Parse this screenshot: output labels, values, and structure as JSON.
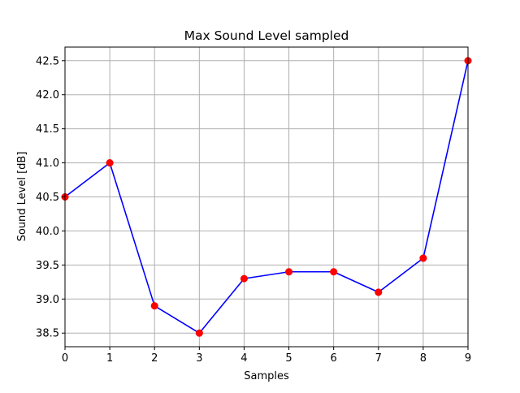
{
  "chart_data": {
    "type": "line",
    "title": "Max Sound Level sampled",
    "xlabel": "Samples",
    "ylabel": "Sound Level [dB]",
    "x": [
      0,
      1,
      2,
      3,
      4,
      5,
      6,
      7,
      8,
      9
    ],
    "series": [
      {
        "values": [
          40.5,
          41.0,
          38.9,
          38.5,
          39.3,
          39.4,
          39.4,
          39.1,
          39.6,
          42.5
        ],
        "line_color": "#0000ff",
        "marker_color": "#ff0000",
        "marker": "circle"
      }
    ],
    "xlim": [
      0,
      9
    ],
    "ylim": [
      38.3,
      42.7
    ],
    "x_ticks": [
      "0",
      "1",
      "2",
      "3",
      "4",
      "5",
      "6",
      "7",
      "8",
      "9"
    ],
    "y_ticks": [
      "38.5",
      "39.0",
      "39.5",
      "40.0",
      "40.5",
      "41.0",
      "41.5",
      "42.0",
      "42.5"
    ],
    "grid": true,
    "grid_color": "#b0b0b0"
  }
}
